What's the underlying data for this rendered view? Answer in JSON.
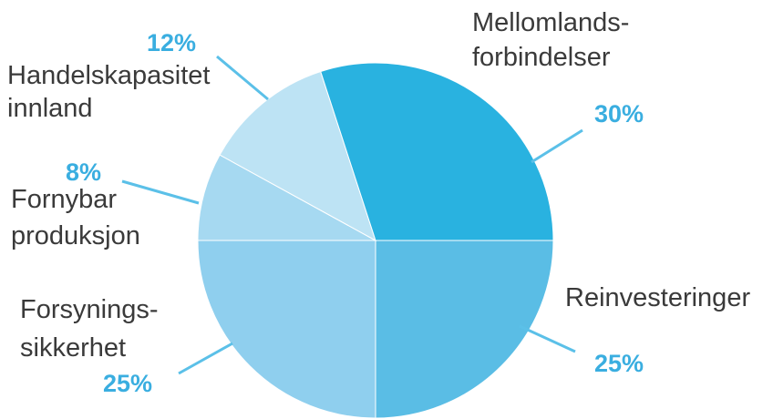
{
  "chart_data": {
    "type": "pie",
    "title": "",
    "slices": [
      {
        "label_lines": [
          "Mellomlands-",
          "forbindelser"
        ],
        "value": 30,
        "value_label": "30%",
        "color": "#29b2e0"
      },
      {
        "label_lines": [
          "Reinvesteringer"
        ],
        "value": 25,
        "value_label": "25%",
        "color": "#5abde5"
      },
      {
        "label_lines": [
          "Forsynings-",
          "sikkerhet"
        ],
        "value": 25,
        "value_label": "25%",
        "color": "#8fcfee"
      },
      {
        "label_lines": [
          "Fornybar",
          "produksjon"
        ],
        "value": 8,
        "value_label": "8%",
        "color": "#a6d9f1"
      },
      {
        "label_lines": [
          "Handelskapasitet",
          "innland"
        ],
        "value": 12,
        "value_label": "12%",
        "color": "#bde3f4"
      }
    ],
    "percent_label_color": "#3aaee0",
    "leader_color": "#5bc0e8"
  }
}
